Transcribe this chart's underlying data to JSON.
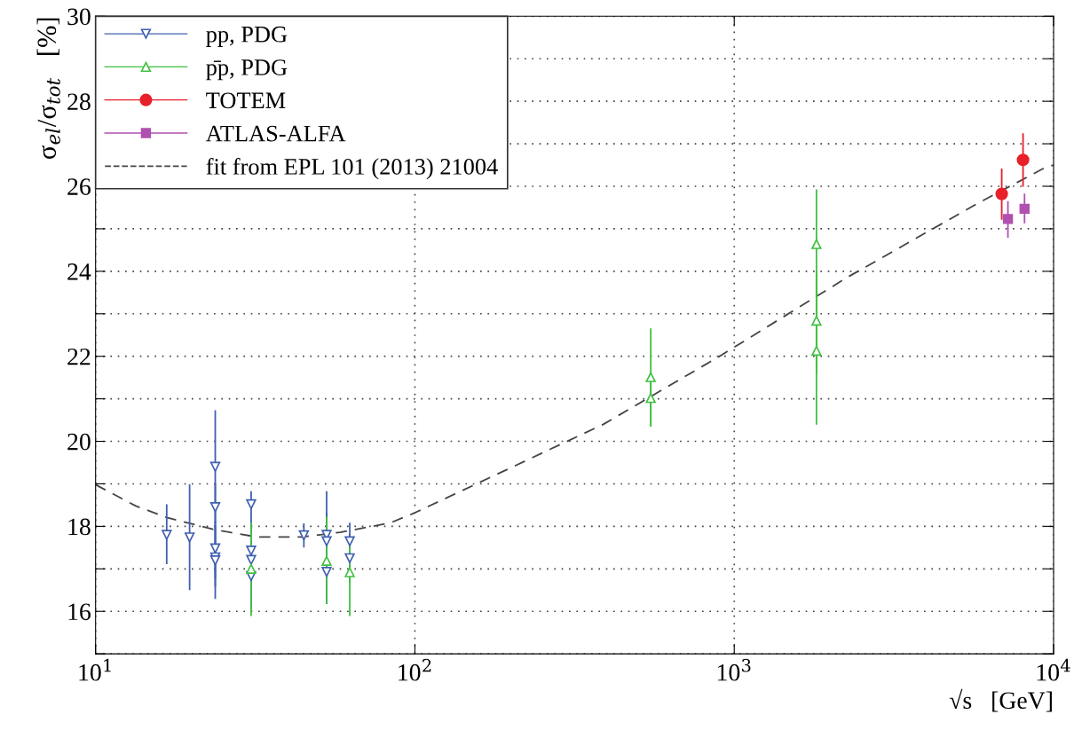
{
  "chart_data": {
    "type": "scatter",
    "xlabel": "√s   [GeV]",
    "ylabel": "σ$_{el}$/σ$_{tot}$   [%]",
    "log": "x",
    "xlim": [
      10,
      10000
    ],
    "xticks": [
      {
        "value": 10,
        "label": "10$^{1}$"
      },
      {
        "value": 100,
        "label": "10$^{2}$"
      },
      {
        "value": 1000,
        "label": "10$^{3}$"
      },
      {
        "value": 10000,
        "label": "10$^{4}$"
      }
    ],
    "ylim": [
      15,
      30
    ],
    "yticks": [
      {
        "value": 15,
        "label": null
      },
      16,
      {
        "value": 17,
        "label": null
      },
      18,
      {
        "value": 19,
        "label": null
      },
      20,
      {
        "value": 21,
        "label": null
      },
      22,
      {
        "value": 23,
        "label": null
      },
      24,
      {
        "value": 25,
        "label": null
      },
      26,
      {
        "value": 27,
        "label": null
      },
      28,
      {
        "value": 29,
        "label": null
      },
      30
    ],
    "grid": true,
    "legend": "top left",
    "series": [
      {
        "name": "pp, PDG",
        "color": "#4060b0",
        "marker": "triangle_down",
        "x": [
          16.7,
          19.7,
          23.7,
          23.7,
          23.7,
          23.7,
          23.7,
          30.7,
          30.7,
          30.7,
          30.7,
          44.9,
          52.9,
          52.9,
          52.9,
          62.5,
          62.5
        ],
        "values": [
          17.8,
          17.74,
          19.4,
          18.45,
          17.48,
          17.27,
          17.2,
          18.52,
          17.43,
          17.21,
          16.83,
          17.79,
          17.8,
          17.65,
          16.93,
          17.65,
          17.25
        ],
        "errors": [
          [
            17.13,
            18.5
          ],
          [
            16.52,
            18.97
          ],
          [
            18.1,
            20.71
          ],
          [
            17.9,
            19.0
          ],
          [
            16.8,
            18.1
          ],
          [
            16.6,
            17.9
          ],
          [
            16.31,
            18.0
          ],
          [
            16.05,
            18.81
          ],
          null,
          null,
          null,
          [
            17.52,
            18.05
          ],
          [
            17.2,
            18.81
          ],
          [
            17.0,
            18.3
          ],
          [
            16.19,
            17.6
          ],
          [
            17.25,
            18.07
          ],
          [
            16.7,
            17.8
          ]
        ]
      },
      {
        "name": "p̄p, PDG",
        "color": "#40c040",
        "marker": "triangle",
        "x": [
          30.7,
          52.9,
          62.5,
          547.6,
          547.6,
          1809,
          1809,
          1809
        ],
        "values": [
          17.0,
          17.19,
          16.92,
          21.51,
          21.02,
          24.64,
          22.84,
          22.13
        ],
        "errors": [
          [
            15.91,
            18.07
          ],
          [
            16.19,
            18.21
          ],
          [
            15.91,
            17.6
          ],
          [
            20.36,
            22.64
          ],
          [
            20.4,
            21.6
          ],
          [
            23.4,
            25.91
          ],
          [
            21.6,
            24.0
          ],
          [
            20.41,
            23.8
          ]
        ]
      },
      {
        "name": "TOTEM",
        "color": "#e8202a",
        "marker": "circle",
        "x": [
          6880,
          8023
        ],
        "values": [
          25.82,
          26.62
        ],
        "errors": [
          [
            25.23,
            26.4
          ],
          [
            26.01,
            27.23
          ]
        ]
      },
      {
        "name": "ATLAS-ALFA",
        "color": "#b050b0",
        "marker": "square",
        "x": [
          7194,
          8110
        ],
        "values": [
          25.23,
          25.47
        ],
        "errors": [
          [
            24.81,
            25.63
          ],
          [
            25.15,
            25.81
          ]
        ]
      },
      {
        "name": "fit from EPL 101 (2013) 21004",
        "type": "line",
        "color": "#444444",
        "line_style": "dashed",
        "marker": "none",
        "x": [
          10,
          13.36,
          16.7,
          23.3,
          32.0,
          44.2,
          58.4,
          83.6,
          100,
          389,
          913,
          2239,
          5727,
          9355,
          10000
        ],
        "values": [
          18.98,
          18.48,
          18.21,
          17.93,
          17.75,
          17.75,
          17.86,
          18.08,
          18.32,
          20.4,
          22.03,
          23.84,
          25.58,
          26.43,
          26.5
        ]
      }
    ]
  }
}
